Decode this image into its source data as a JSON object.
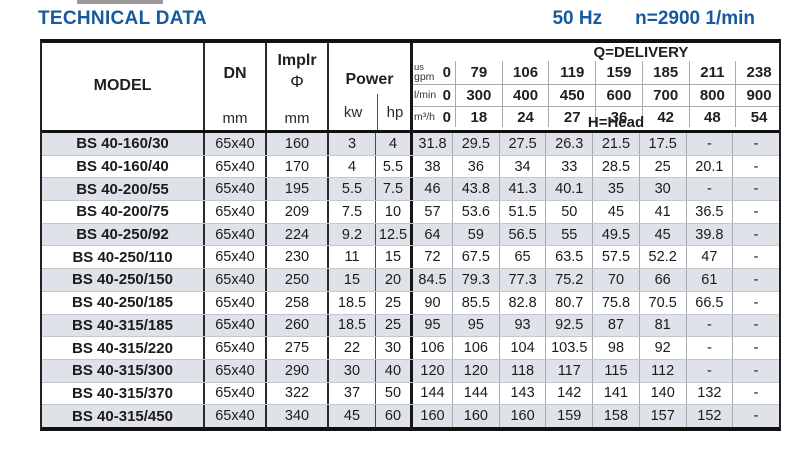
{
  "header": {
    "title": "TECHNICAL DATA",
    "frequency": "50 Hz",
    "speed": "n=2900 1/min"
  },
  "colors": {
    "accent_blue": "#16599e",
    "row_stripe": "#dfe3e9"
  },
  "table": {
    "model_header": "MODEL",
    "dn_header": "DN",
    "implr_header": "Implr",
    "implr_symbol": "Φ",
    "power_header": "Power",
    "unit_mm": "mm",
    "unit_kw": "kw",
    "unit_hp": "hp",
    "delivery_title": "Q=DELIVERY",
    "head_title": "H=Head",
    "flow_rows": [
      {
        "unit_lines": [
          "us",
          "gpm"
        ],
        "values": [
          "0",
          "79",
          "106",
          "119",
          "159",
          "185",
          "211",
          "238"
        ]
      },
      {
        "unit_lines": [
          "l/min"
        ],
        "values": [
          "0",
          "300",
          "400",
          "450",
          "600",
          "700",
          "800",
          "900"
        ]
      },
      {
        "unit_lines": [
          "m³/h"
        ],
        "values": [
          "0",
          "18",
          "24",
          "27",
          "36",
          "42",
          "48",
          "54"
        ]
      }
    ],
    "rows": [
      {
        "model": "BS 40-160/30",
        "dn": "65x40",
        "implr": "160",
        "kw": "3",
        "hp": "4",
        "heads": [
          "31.8",
          "29.5",
          "27.5",
          "26.3",
          "21.5",
          "17.5",
          "-",
          "-"
        ]
      },
      {
        "model": "BS 40-160/40",
        "dn": "65x40",
        "implr": "170",
        "kw": "4",
        "hp": "5.5",
        "heads": [
          "38",
          "36",
          "34",
          "33",
          "28.5",
          "25",
          "20.1",
          "-"
        ]
      },
      {
        "model": "BS 40-200/55",
        "dn": "65x40",
        "implr": "195",
        "kw": "5.5",
        "hp": "7.5",
        "heads": [
          "46",
          "43.8",
          "41.3",
          "40.1",
          "35",
          "30",
          "-",
          "-"
        ]
      },
      {
        "model": "BS 40-200/75",
        "dn": "65x40",
        "implr": "209",
        "kw": "7.5",
        "hp": "10",
        "heads": [
          "57",
          "53.6",
          "51.5",
          "50",
          "45",
          "41",
          "36.5",
          "-"
        ]
      },
      {
        "model": "BS 40-250/92",
        "dn": "65x40",
        "implr": "224",
        "kw": "9.2",
        "hp": "12.5",
        "heads": [
          "64",
          "59",
          "56.5",
          "55",
          "49.5",
          "45",
          "39.8",
          "-"
        ]
      },
      {
        "model": "BS 40-250/110",
        "dn": "65x40",
        "implr": "230",
        "kw": "11",
        "hp": "15",
        "heads": [
          "72",
          "67.5",
          "65",
          "63.5",
          "57.5",
          "52.2",
          "47",
          "-"
        ]
      },
      {
        "model": "BS 40-250/150",
        "dn": "65x40",
        "implr": "250",
        "kw": "15",
        "hp": "20",
        "heads": [
          "84.5",
          "79.3",
          "77.3",
          "75.2",
          "70",
          "66",
          "61",
          "-"
        ]
      },
      {
        "model": "BS 40-250/185",
        "dn": "65x40",
        "implr": "258",
        "kw": "18.5",
        "hp": "25",
        "heads": [
          "90",
          "85.5",
          "82.8",
          "80.7",
          "75.8",
          "70.5",
          "66.5",
          "-"
        ]
      },
      {
        "model": "BS 40-315/185",
        "dn": "65x40",
        "implr": "260",
        "kw": "18.5",
        "hp": "25",
        "heads": [
          "95",
          "95",
          "93",
          "92.5",
          "87",
          "81",
          "-",
          "-"
        ]
      },
      {
        "model": "BS 40-315/220",
        "dn": "65x40",
        "implr": "275",
        "kw": "22",
        "hp": "30",
        "heads": [
          "106",
          "106",
          "104",
          "103.5",
          "98",
          "92",
          "-",
          "-"
        ]
      },
      {
        "model": "BS 40-315/300",
        "dn": "65x40",
        "implr": "290",
        "kw": "30",
        "hp": "40",
        "heads": [
          "120",
          "120",
          "118",
          "117",
          "115",
          "112",
          "-",
          "-"
        ]
      },
      {
        "model": "BS 40-315/370",
        "dn": "65x40",
        "implr": "322",
        "kw": "37",
        "hp": "50",
        "heads": [
          "144",
          "144",
          "143",
          "142",
          "141",
          "140",
          "132",
          "-"
        ]
      },
      {
        "model": "BS 40-315/450",
        "dn": "65x40",
        "implr": "340",
        "kw": "45",
        "hp": "60",
        "heads": [
          "160",
          "160",
          "160",
          "159",
          "158",
          "157",
          "152",
          "-"
        ]
      }
    ]
  }
}
